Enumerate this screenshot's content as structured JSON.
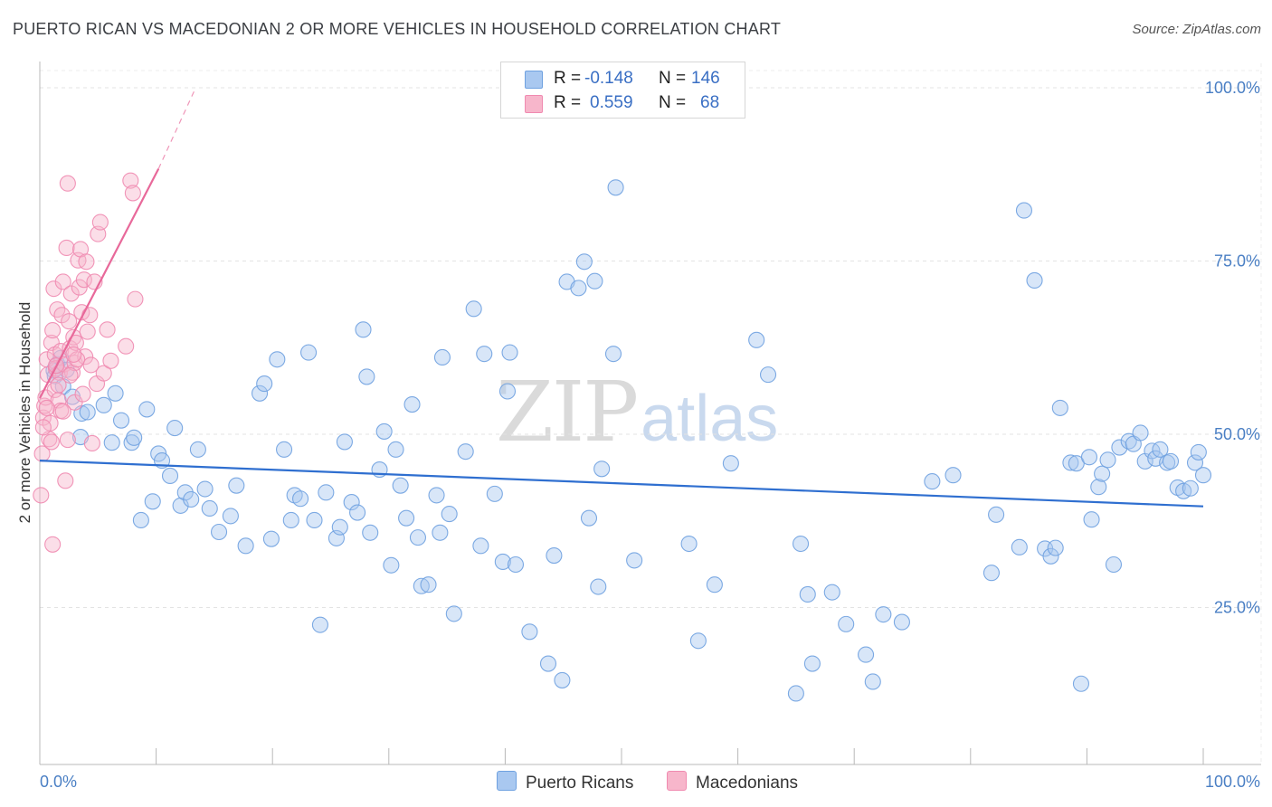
{
  "title": "PUERTO RICAN VS MACEDONIAN 2 OR MORE VEHICLES IN HOUSEHOLD CORRELATION CHART",
  "source": "Source: ZipAtlas.com",
  "watermark": {
    "zip": "ZIP",
    "atlas": "atlas"
  },
  "legend": {
    "rows": [
      {
        "r_label": "R =",
        "r_value": "-0.148",
        "n_label": "N =",
        "n_value": "146",
        "color": "#a9c8f0"
      },
      {
        "r_label": "R =",
        "r_value": "0.559",
        "n_label": "N =",
        "n_value": "68",
        "color": "#f7b6cb"
      }
    ]
  },
  "bottom_legend": [
    {
      "label": "Puerto Ricans",
      "color": "#a9c8f0"
    },
    {
      "label": "Macedonians",
      "color": "#f7b6cb"
    }
  ],
  "chart_data": {
    "type": "scatter",
    "title": "PUERTO RICAN VS MACEDONIAN 2 OR MORE VEHICLES IN HOUSEHOLD CORRELATION CHART",
    "xlabel": "",
    "ylabel": "2 or more Vehicles in Household",
    "xlim": [
      0,
      100
    ],
    "ylim": [
      0,
      100
    ],
    "x_tick_labels": [
      "0.0%",
      "100.0%"
    ],
    "y_tick_labels": [
      "100.0%",
      "75.0%",
      "50.0%",
      "25.0%"
    ],
    "y_ticks": [
      100,
      75,
      50,
      25
    ],
    "grid": true,
    "series": [
      {
        "name": "Puerto Ricans",
        "color": "#6fa1e0",
        "fill": "#a9c8f0",
        "trend": {
          "x": [
            0,
            100
          ],
          "y": [
            46.2,
            39.6
          ],
          "color": "#2f6fd0"
        },
        "points": [
          [
            1.2,
            59.2
          ],
          [
            1.5,
            60.1
          ],
          [
            1.8,
            61.0
          ],
          [
            1.3,
            58.4
          ],
          [
            2.0,
            56.9
          ],
          [
            2.3,
            59.3
          ],
          [
            2.8,
            55.4
          ],
          [
            3.6,
            53.0
          ],
          [
            4.1,
            53.2
          ],
          [
            5.5,
            54.2
          ],
          [
            3.5,
            49.6
          ],
          [
            6.2,
            48.8
          ],
          [
            6.5,
            55.9
          ],
          [
            7.0,
            52.0
          ],
          [
            7.9,
            48.8
          ],
          [
            8.1,
            49.5
          ],
          [
            8.7,
            37.6
          ],
          [
            9.2,
            53.6
          ],
          [
            9.7,
            40.3
          ],
          [
            10.2,
            47.2
          ],
          [
            10.5,
            46.2
          ],
          [
            11.2,
            44.0
          ],
          [
            11.6,
            50.9
          ],
          [
            12.1,
            39.7
          ],
          [
            12.5,
            41.6
          ],
          [
            13.0,
            40.6
          ],
          [
            13.6,
            47.8
          ],
          [
            14.2,
            42.1
          ],
          [
            14.6,
            39.3
          ],
          [
            15.4,
            35.9
          ],
          [
            16.4,
            38.2
          ],
          [
            16.9,
            42.6
          ],
          [
            17.7,
            33.9
          ],
          [
            18.9,
            55.9
          ],
          [
            19.3,
            57.3
          ],
          [
            19.9,
            34.9
          ],
          [
            20.4,
            60.8
          ],
          [
            21.0,
            47.8
          ],
          [
            21.6,
            37.6
          ],
          [
            21.9,
            41.2
          ],
          [
            22.4,
            40.7
          ],
          [
            23.1,
            61.8
          ],
          [
            23.6,
            37.6
          ],
          [
            24.1,
            22.5
          ],
          [
            24.6,
            41.6
          ],
          [
            25.5,
            35.0
          ],
          [
            25.8,
            36.6
          ],
          [
            26.2,
            48.9
          ],
          [
            26.8,
            40.2
          ],
          [
            27.3,
            38.7
          ],
          [
            27.8,
            65.1
          ],
          [
            28.1,
            58.3
          ],
          [
            28.4,
            35.8
          ],
          [
            29.2,
            44.9
          ],
          [
            29.6,
            50.4
          ],
          [
            30.2,
            31.1
          ],
          [
            30.6,
            47.8
          ],
          [
            31.0,
            42.6
          ],
          [
            31.5,
            37.9
          ],
          [
            32.0,
            54.3
          ],
          [
            32.5,
            35.1
          ],
          [
            32.8,
            28.1
          ],
          [
            33.4,
            28.3
          ],
          [
            34.1,
            41.2
          ],
          [
            34.4,
            35.8
          ],
          [
            34.6,
            61.1
          ],
          [
            35.2,
            38.5
          ],
          [
            35.6,
            24.1
          ],
          [
            36.6,
            47.5
          ],
          [
            37.3,
            68.1
          ],
          [
            37.9,
            33.9
          ],
          [
            38.2,
            61.6
          ],
          [
            39.1,
            41.4
          ],
          [
            39.8,
            31.6
          ],
          [
            40.2,
            56.2
          ],
          [
            40.4,
            61.8
          ],
          [
            40.9,
            31.2
          ],
          [
            42.1,
            21.5
          ],
          [
            43.7,
            16.9
          ],
          [
            44.2,
            32.5
          ],
          [
            44.9,
            14.5
          ],
          [
            45.3,
            72.0
          ],
          [
            46.3,
            71.1
          ],
          [
            46.8,
            74.9
          ],
          [
            47.2,
            37.9
          ],
          [
            47.7,
            72.1
          ],
          [
            48.0,
            28.0
          ],
          [
            48.3,
            45.0
          ],
          [
            49.3,
            61.6
          ],
          [
            49.5,
            85.6
          ],
          [
            51.1,
            31.8
          ],
          [
            55.8,
            34.2
          ],
          [
            56.6,
            20.2
          ],
          [
            58.0,
            28.3
          ],
          [
            59.4,
            45.8
          ],
          [
            61.6,
            63.6
          ],
          [
            62.6,
            58.6
          ],
          [
            65.0,
            12.6
          ],
          [
            65.4,
            34.2
          ],
          [
            66.0,
            26.9
          ],
          [
            66.4,
            16.9
          ],
          [
            68.1,
            27.2
          ],
          [
            69.3,
            22.6
          ],
          [
            71.0,
            18.2
          ],
          [
            71.6,
            14.3
          ],
          [
            72.5,
            24.0
          ],
          [
            74.1,
            22.9
          ],
          [
            76.7,
            43.2
          ],
          [
            78.5,
            44.1
          ],
          [
            81.8,
            30.0
          ],
          [
            82.2,
            38.4
          ],
          [
            84.2,
            33.7
          ],
          [
            84.6,
            82.3
          ],
          [
            85.5,
            72.2
          ],
          [
            86.4,
            33.5
          ],
          [
            86.9,
            32.4
          ],
          [
            87.3,
            33.6
          ],
          [
            87.7,
            53.8
          ],
          [
            88.6,
            45.9
          ],
          [
            89.1,
            45.8
          ],
          [
            89.5,
            14.0
          ],
          [
            90.2,
            46.7
          ],
          [
            90.4,
            37.7
          ],
          [
            91.0,
            42.4
          ],
          [
            91.3,
            44.3
          ],
          [
            91.8,
            46.3
          ],
          [
            92.3,
            31.2
          ],
          [
            92.8,
            48.1
          ],
          [
            93.6,
            49.0
          ],
          [
            94.0,
            48.6
          ],
          [
            94.6,
            50.2
          ],
          [
            95.0,
            46.1
          ],
          [
            95.6,
            47.6
          ],
          [
            95.9,
            46.5
          ],
          [
            96.3,
            47.8
          ],
          [
            96.9,
            45.9
          ],
          [
            97.2,
            46.1
          ],
          [
            97.8,
            42.3
          ],
          [
            98.3,
            41.8
          ],
          [
            98.9,
            42.2
          ],
          [
            99.3,
            45.9
          ],
          [
            99.6,
            47.4
          ],
          [
            100.0,
            44.1
          ]
        ]
      },
      {
        "name": "Macedonians",
        "color": "#f08ab0",
        "fill": "#f7b6cb",
        "trend": {
          "x": [
            0,
            10.2
          ],
          "y": [
            55.2,
            88.3
          ],
          "color": "#e8699a",
          "extension": {
            "x": [
              10.2,
              13.4
            ],
            "y": [
              88.3,
              100
            ]
          }
        },
        "points": [
          [
            0.1,
            41.2
          ],
          [
            0.2,
            47.2
          ],
          [
            0.3,
            52.4
          ],
          [
            0.4,
            54.1
          ],
          [
            0.5,
            55.3
          ],
          [
            0.6,
            60.8
          ],
          [
            0.7,
            58.6
          ],
          [
            0.8,
            49.3
          ],
          [
            0.9,
            51.6
          ],
          [
            1.0,
            63.2
          ],
          [
            1.1,
            65.0
          ],
          [
            1.1,
            34.1
          ],
          [
            1.2,
            71.0
          ],
          [
            1.3,
            61.5
          ],
          [
            1.3,
            56.4
          ],
          [
            1.4,
            59.5
          ],
          [
            1.5,
            68.0
          ],
          [
            1.6,
            54.9
          ],
          [
            1.7,
            58.9
          ],
          [
            1.8,
            62.0
          ],
          [
            1.8,
            53.4
          ],
          [
            1.9,
            67.2
          ],
          [
            2.0,
            72.0
          ],
          [
            2.1,
            60.1
          ],
          [
            2.2,
            43.3
          ],
          [
            2.3,
            76.9
          ],
          [
            2.4,
            86.2
          ],
          [
            2.4,
            49.2
          ],
          [
            2.5,
            66.3
          ],
          [
            2.6,
            62.4
          ],
          [
            2.7,
            70.3
          ],
          [
            2.8,
            58.9
          ],
          [
            2.9,
            64.0
          ],
          [
            3.0,
            54.6
          ],
          [
            3.0,
            60.3
          ],
          [
            3.1,
            63.2
          ],
          [
            3.3,
            75.1
          ],
          [
            3.4,
            71.2
          ],
          [
            3.5,
            76.7
          ],
          [
            3.6,
            67.6
          ],
          [
            3.8,
            72.3
          ],
          [
            3.9,
            61.2
          ],
          [
            4.0,
            74.9
          ],
          [
            4.1,
            64.8
          ],
          [
            4.3,
            67.2
          ],
          [
            4.5,
            48.7
          ],
          [
            4.7,
            72.0
          ],
          [
            4.9,
            57.3
          ],
          [
            5.0,
            78.9
          ],
          [
            5.2,
            80.6
          ],
          [
            5.5,
            58.8
          ],
          [
            5.8,
            65.1
          ],
          [
            6.1,
            60.6
          ],
          [
            7.4,
            62.7
          ],
          [
            7.8,
            86.6
          ],
          [
            8.0,
            84.8
          ],
          [
            8.2,
            69.5
          ],
          [
            1.6,
            57.1
          ],
          [
            2.0,
            53.3
          ],
          [
            2.6,
            58.5
          ],
          [
            3.2,
            60.8
          ],
          [
            1.0,
            48.9
          ],
          [
            0.6,
            53.8
          ],
          [
            0.3,
            51.0
          ],
          [
            1.4,
            59.9
          ],
          [
            2.9,
            61.5
          ],
          [
            3.7,
            55.8
          ],
          [
            4.4,
            60.0
          ]
        ]
      }
    ]
  }
}
